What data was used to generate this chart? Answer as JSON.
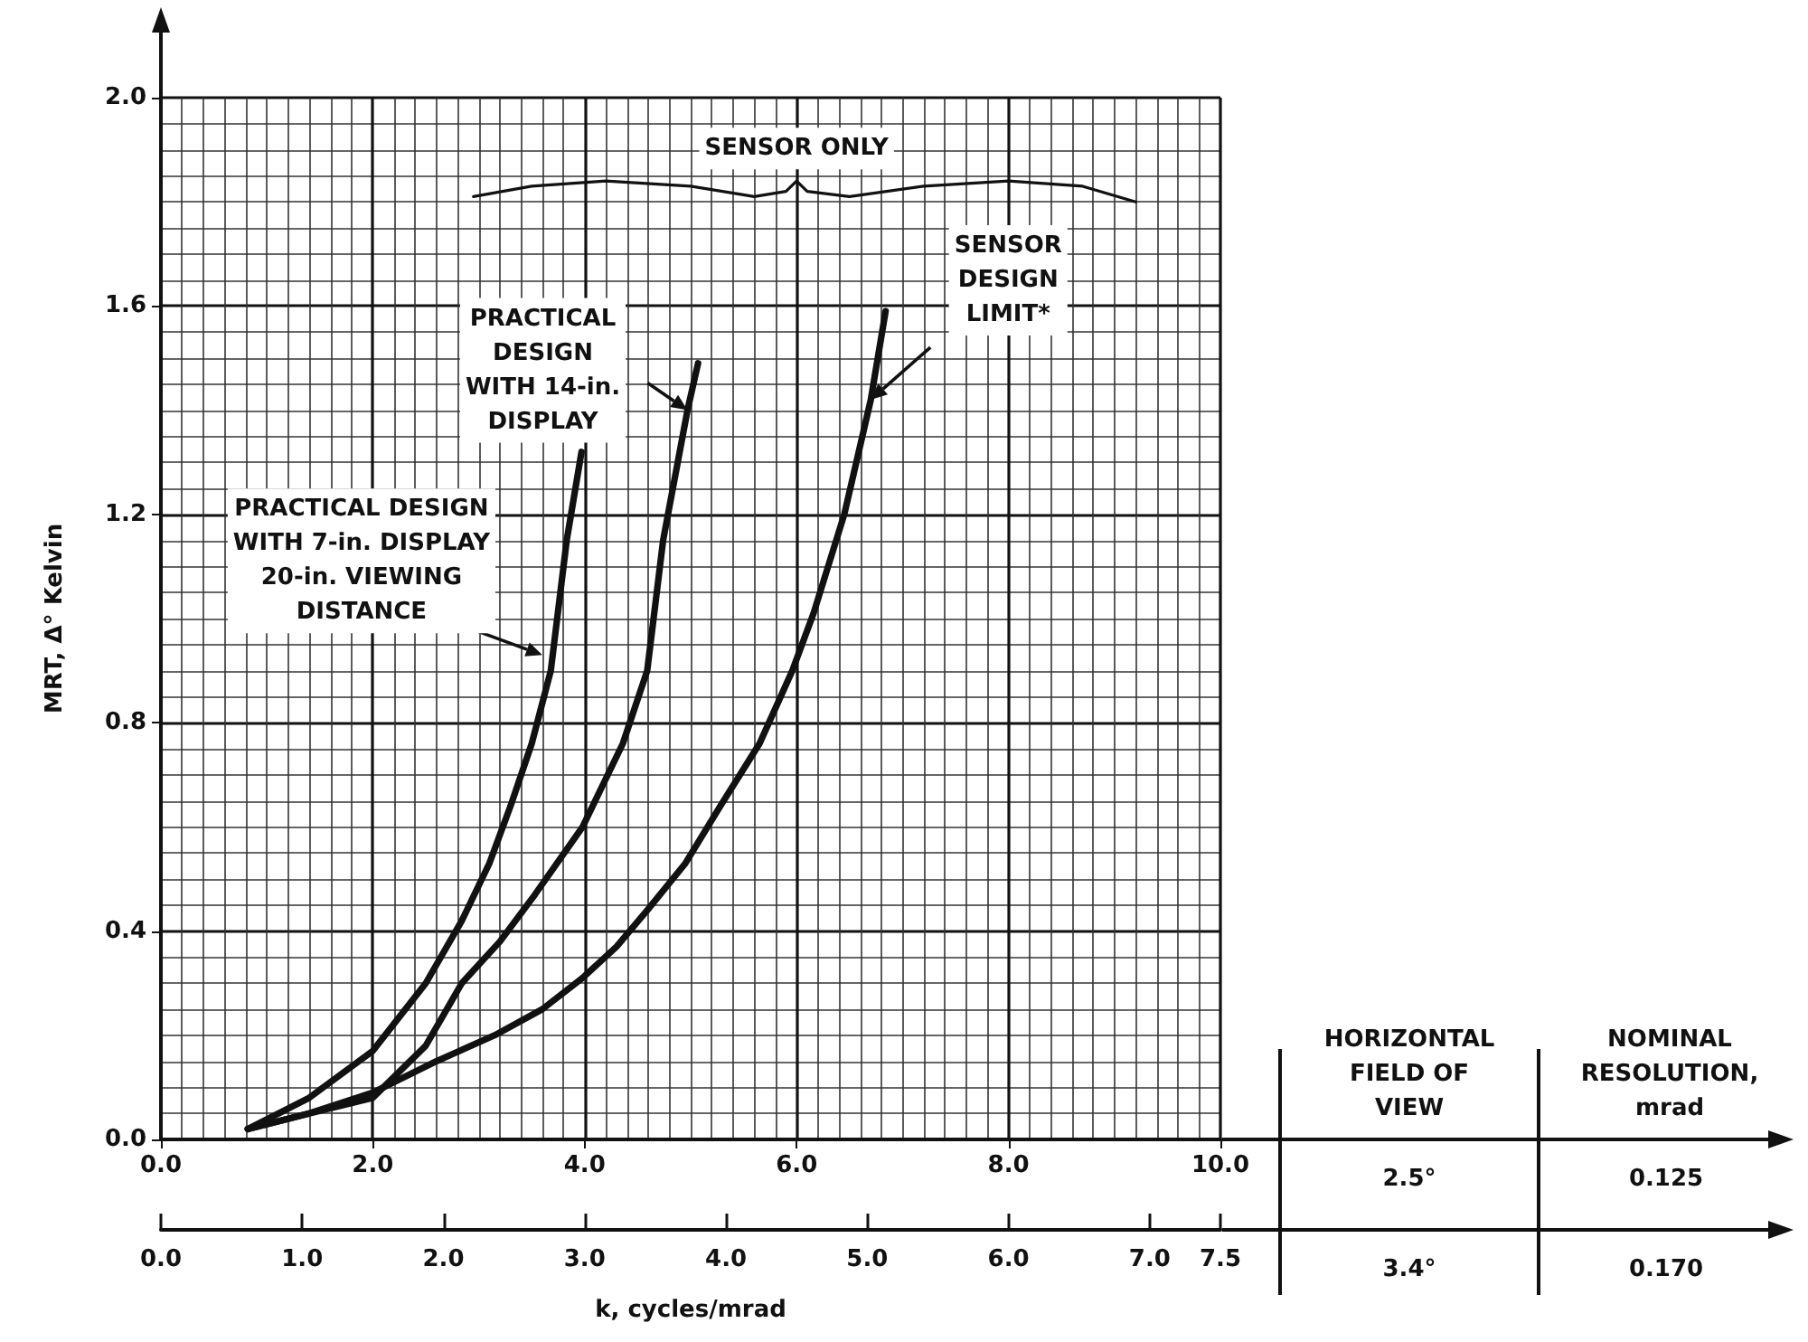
{
  "chart_data": {
    "type": "line",
    "xlabel": "k, cycles/mrad",
    "ylabel": "MRT, Δ° Kelvin",
    "xlim": [
      0,
      10
    ],
    "xticks": [
      {
        "value": 0,
        "label": "0.0"
      },
      {
        "value": 2,
        "label": "2.0"
      },
      {
        "value": 4,
        "label": "4.0"
      },
      {
        "value": 6,
        "label": "6.0"
      },
      {
        "value": 8,
        "label": "8.0"
      },
      {
        "value": 10,
        "label": "10.0"
      }
    ],
    "x2lim": [
      0,
      7.5
    ],
    "x2ticks": [
      {
        "value": 0,
        "label": "0.0"
      },
      {
        "value": 1,
        "label": "1.0"
      },
      {
        "value": 2,
        "label": "2.0"
      },
      {
        "value": 3,
        "label": "3.0"
      },
      {
        "value": 4,
        "label": "4.0"
      },
      {
        "value": 5,
        "label": "5.0"
      },
      {
        "value": 6,
        "label": "6.0"
      },
      {
        "value": 7,
        "label": "7.0"
      },
      7.5
    ],
    "ylim": [
      0,
      2
    ],
    "yticks": [
      {
        "value": 0,
        "label": "0.0"
      },
      0.4,
      0.8,
      1.2,
      1.6,
      {
        "value": 2,
        "label": "2.0"
      }
    ],
    "grid": true,
    "marker": "none",
    "line_style": "solid",
    "series": [
      {
        "color": "#111111",
        "x": [
          0.82,
          1.4,
          2.0,
          2.5,
          2.84,
          3.1,
          3.3,
          3.5,
          3.68,
          3.83,
          3.97
        ],
        "values": [
          0.02,
          0.08,
          0.17,
          0.3,
          0.42,
          0.53,
          0.64,
          0.76,
          0.9,
          1.15,
          1.32
        ]
      },
      {
        "color": "#111111",
        "x": [
          0.82,
          1.4,
          2.0,
          2.5,
          2.84,
          3.2,
          3.53,
          3.98,
          4.36,
          4.59,
          4.74,
          4.97,
          5.07
        ],
        "values": [
          0.02,
          0.05,
          0.08,
          0.18,
          0.3,
          0.38,
          0.47,
          0.6,
          0.76,
          0.9,
          1.15,
          1.4,
          1.49
        ]
      },
      {
        "color": "#111111",
        "x": [
          0.82,
          1.4,
          2.0,
          2.6,
          3.15,
          3.6,
          3.98,
          4.3,
          4.59,
          4.95,
          5.28,
          5.65,
          5.96,
          6.16,
          6.45,
          6.7,
          6.84
        ],
        "values": [
          0.02,
          0.05,
          0.09,
          0.15,
          0.2,
          0.25,
          0.31,
          0.37,
          0.44,
          0.53,
          0.64,
          0.76,
          0.9,
          1.01,
          1.2,
          1.42,
          1.59
        ]
      },
      {
        "color": "#111111",
        "x": [
          2.95,
          3.5,
          4.2,
          5.0,
          5.6,
          5.9,
          6.0,
          6.1,
          6.5,
          7.2,
          8.0,
          8.7,
          9.2
        ],
        "values": [
          1.81,
          1.83,
          1.84,
          1.83,
          1.81,
          1.82,
          1.84,
          1.82,
          1.81,
          1.83,
          1.84,
          1.83,
          1.8
        ]
      }
    ],
    "annotations": [
      {
        "text": "PRACTICAL DESIGN\nWITH 7-in. DISPLAY\n20-in. VIEWING\nDISTANCE",
        "x": 3.6,
        "y": 0.93
      },
      {
        "text": "PRACTICAL\nDESIGN\nWITH 14-in.\nDISPLAY",
        "x": 4.97,
        "y": 1.4
      },
      {
        "text": "SENSOR\nDESIGN\nLIMIT*",
        "x": 6.7,
        "y": 1.42
      },
      {
        "text": "SENSOR ONLY",
        "x": 6.0,
        "y": 1.84
      },
      "HORIZONTAL\nFIELD OF\nVIEW",
      "NOMINAL\nRESOLUTION,\nmrad",
      "2.5°",
      "0.125",
      "3.4°",
      "0.170"
    ]
  }
}
